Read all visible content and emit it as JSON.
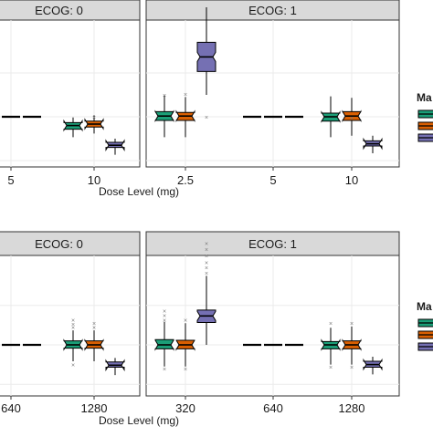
{
  "colors": {
    "teal": "#1b9e77",
    "orange": "#d95f02",
    "purple": "#7570b3",
    "strip_bg": "#d9d9d9",
    "panel_border": "#333333",
    "grid": "#ebebeb"
  },
  "chart_data": [
    {
      "type": "box",
      "row": 1,
      "x_tick_labels": [
        "5",
        "10",
        "2.5",
        "5",
        "10"
      ],
      "xlabel": "Dose Level (mg)",
      "legend_title_fragment": "Ma",
      "legend_placement": "right",
      "panels": [
        {
          "strip": "ECOG: 0",
          "ticks": [
            "5",
            "10"
          ],
          "groups": [
            {
              "tick": "5",
              "boxes": [
                {
                  "series": 0,
                  "q1": 0,
                  "median": 0,
                  "q3": 0,
                  "lo": 0,
                  "hi": 0
                },
                {
                  "series": 1,
                  "q1": 0,
                  "median": 0,
                  "q3": 0,
                  "lo": 0,
                  "hi": 0
                },
                {
                  "series": 2,
                  "q1": 0,
                  "median": 0,
                  "q3": 0,
                  "lo": 0,
                  "hi": 0
                }
              ]
            },
            {
              "tick": "10",
              "boxes": [
                {
                  "series": 0,
                  "q1": -0.17,
                  "median": -0.12,
                  "q3": -0.08,
                  "lo": -0.28,
                  "hi": -0.01,
                  "outliers": []
                },
                {
                  "series": 1,
                  "q1": -0.14,
                  "median": -0.1,
                  "q3": -0.06,
                  "lo": -0.23,
                  "hi": 0.02,
                  "outliers": [
                    0.0
                  ]
                },
                {
                  "series": 2,
                  "q1": -0.42,
                  "median": -0.39,
                  "q3": -0.35,
                  "lo": -0.52,
                  "hi": -0.3,
                  "outliers": []
                }
              ]
            }
          ]
        },
        {
          "strip": "ECOG: 1",
          "ticks": [
            "2.5",
            "5",
            "10"
          ],
          "groups": [
            {
              "tick": "2.5",
              "boxes": [
                {
                  "series": 0,
                  "q1": -0.05,
                  "median": 0.01,
                  "q3": 0.07,
                  "lo": -0.28,
                  "hi": 0.3,
                  "outliers": [
                    0.3
                  ]
                },
                {
                  "series": 1,
                  "q1": -0.05,
                  "median": 0.01,
                  "q3": 0.06,
                  "lo": -0.28,
                  "hi": 0.27,
                  "outliers": [
                    0.31
                  ]
                },
                {
                  "series": 2,
                  "q1": 0.62,
                  "median": 0.82,
                  "q3": 1.02,
                  "lo": 0.3,
                  "hi": 1.5,
                  "outliers": [
                    0.0
                  ]
                }
              ]
            },
            {
              "tick": "5",
              "boxes": [
                {
                  "series": 0,
                  "q1": 0,
                  "median": 0,
                  "q3": 0,
                  "lo": 0,
                  "hi": 0
                },
                {
                  "series": 1,
                  "q1": 0,
                  "median": 0,
                  "q3": 0,
                  "lo": 0,
                  "hi": 0
                },
                {
                  "series": 2,
                  "q1": 0,
                  "median": 0,
                  "q3": 0,
                  "lo": 0,
                  "hi": 0
                }
              ]
            },
            {
              "tick": "10",
              "boxes": [
                {
                  "series": 0,
                  "q1": -0.06,
                  "median": 0.0,
                  "q3": 0.05,
                  "lo": -0.28,
                  "hi": 0.28,
                  "outliers": []
                },
                {
                  "series": 1,
                  "q1": -0.05,
                  "median": 0.01,
                  "q3": 0.07,
                  "lo": -0.26,
                  "hi": 0.26,
                  "outliers": [
                    -0.01
                  ]
                },
                {
                  "series": 2,
                  "q1": -0.4,
                  "median": -0.37,
                  "q3": -0.33,
                  "lo": -0.5,
                  "hi": -0.26,
                  "outliers": []
                }
              ]
            }
          ]
        }
      ]
    },
    {
      "type": "box",
      "row": 2,
      "x_tick_labels": [
        "640",
        "1280",
        "320",
        "640",
        "1280"
      ],
      "xlabel": "Dose Level (mg)",
      "legend_title_fragment": "Ma",
      "legend_placement": "right",
      "panels": [
        {
          "strip": "ECOG: 0",
          "ticks": [
            "640",
            "1280"
          ],
          "groups": [
            {
              "tick": "640",
              "boxes": [
                {
                  "series": 0,
                  "q1": 0,
                  "median": 0,
                  "q3": 0,
                  "lo": 0,
                  "hi": 0
                },
                {
                  "series": 1,
                  "q1": 0,
                  "median": 0,
                  "q3": 0,
                  "lo": 0,
                  "hi": 0
                },
                {
                  "series": 2,
                  "q1": 0,
                  "median": 0,
                  "q3": 0,
                  "lo": 0,
                  "hi": 0
                }
              ]
            },
            {
              "tick": "1280",
              "boxes": [
                {
                  "series": 0,
                  "q1": -0.05,
                  "median": 0.0,
                  "q3": 0.06,
                  "lo": -0.25,
                  "hi": 0.22,
                  "outliers": [
                    0.27,
                    0.32,
                    0.38,
                    -0.3
                  ]
                },
                {
                  "series": 1,
                  "q1": -0.05,
                  "median": 0.0,
                  "q3": 0.06,
                  "lo": -0.25,
                  "hi": 0.22,
                  "outliers": [
                    0.27,
                    0.33
                  ]
                },
                {
                  "series": 2,
                  "q1": -0.34,
                  "median": -0.31,
                  "q3": -0.26,
                  "lo": -0.46,
                  "hi": -0.2,
                  "outliers": []
                }
              ]
            }
          ]
        },
        {
          "strip": "ECOG: 1",
          "ticks": [
            "320",
            "640",
            "1280"
          ],
          "groups": [
            {
              "tick": "320",
              "boxes": [
                {
                  "series": 0,
                  "q1": -0.06,
                  "median": 0.0,
                  "q3": 0.08,
                  "lo": -0.33,
                  "hi": 0.35,
                  "outliers": [
                    0.38,
                    0.45,
                    0.52,
                    -0.36
                  ]
                },
                {
                  "series": 1,
                  "q1": -0.06,
                  "median": 0.0,
                  "q3": 0.07,
                  "lo": -0.33,
                  "hi": 0.33,
                  "outliers": [
                    0.38,
                    -0.36
                  ]
                },
                {
                  "series": 2,
                  "q1": 0.34,
                  "median": 0.44,
                  "q3": 0.53,
                  "lo": 0.0,
                  "hi": 1.05,
                  "outliers": [
                    1.1,
                    1.18,
                    1.26,
                    1.36,
                    1.46,
                    1.55
                  ]
                }
              ]
            },
            {
              "tick": "640",
              "boxes": [
                {
                  "series": 0,
                  "q1": 0,
                  "median": 0,
                  "q3": 0,
                  "lo": 0,
                  "hi": 0
                },
                {
                  "series": 1,
                  "q1": 0,
                  "median": 0,
                  "q3": 0,
                  "lo": 0,
                  "hi": 0
                },
                {
                  "series": 2,
                  "q1": 0,
                  "median": 0,
                  "q3": 0,
                  "lo": 0,
                  "hi": 0
                }
              ]
            },
            {
              "tick": "1280",
              "boxes": [
                {
                  "series": 0,
                  "q1": -0.06,
                  "median": 0.0,
                  "q3": 0.05,
                  "lo": -0.3,
                  "hi": 0.26,
                  "outliers": [
                    0.33,
                    -0.33
                  ]
                },
                {
                  "series": 1,
                  "q1": -0.06,
                  "median": 0.0,
                  "q3": 0.06,
                  "lo": -0.3,
                  "hi": 0.28,
                  "outliers": [
                    0.33,
                    -0.33
                  ]
                },
                {
                  "series": 2,
                  "q1": -0.34,
                  "median": -0.3,
                  "q3": -0.25,
                  "lo": -0.45,
                  "hi": -0.18,
                  "outliers": []
                }
              ]
            }
          ]
        }
      ]
    }
  ]
}
